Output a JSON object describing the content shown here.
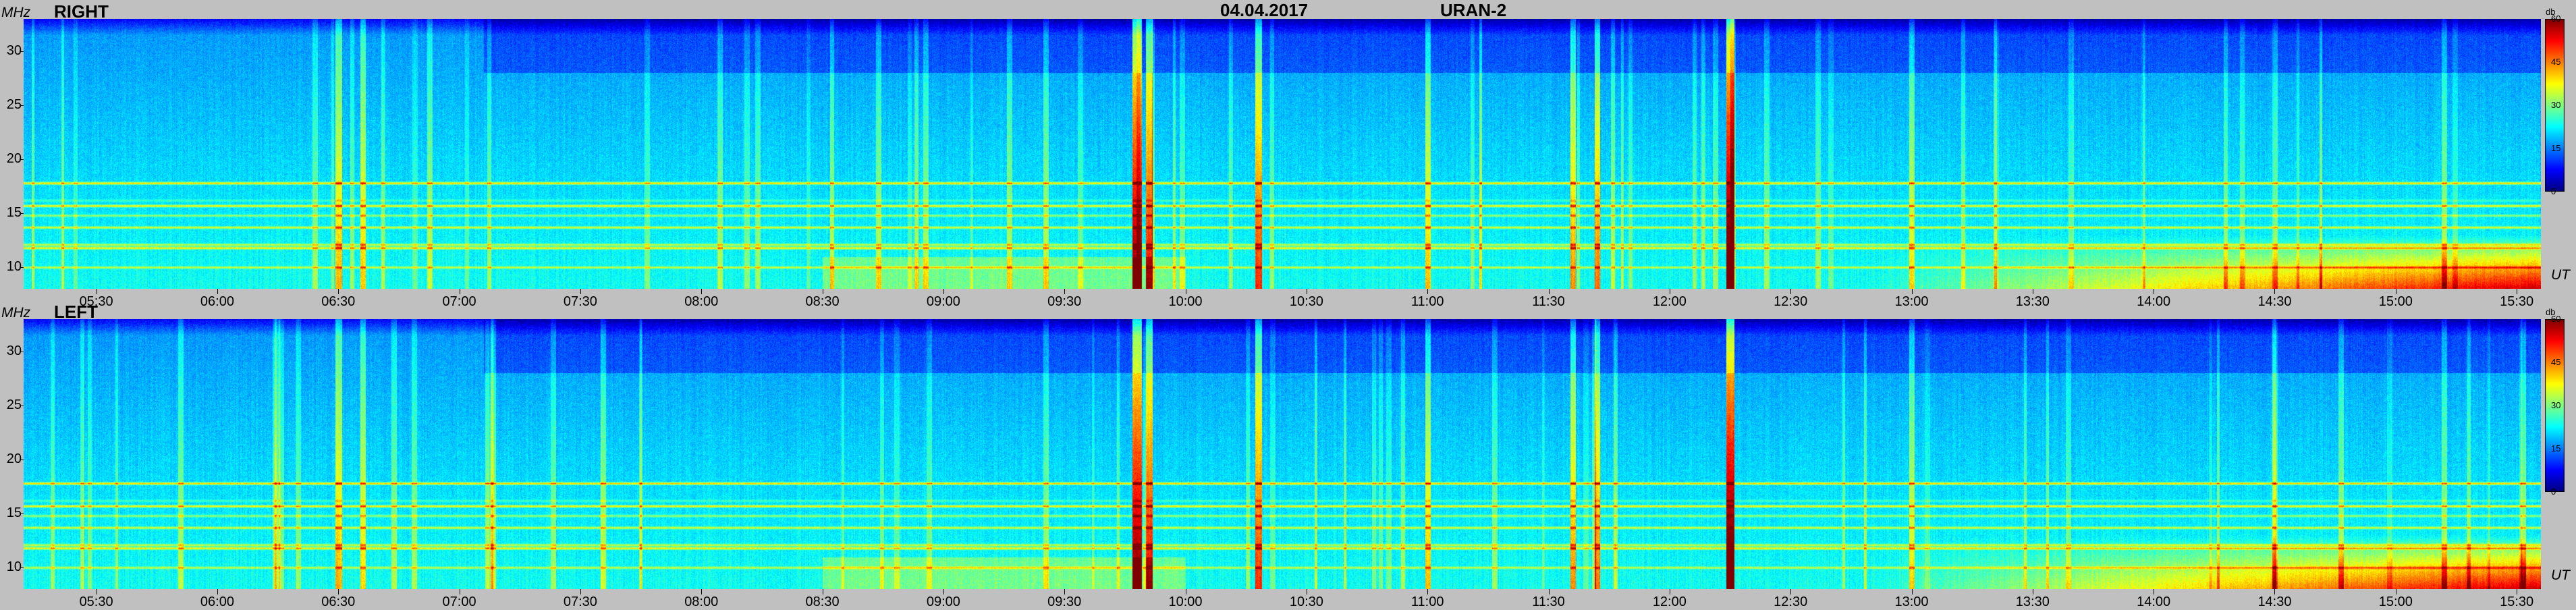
{
  "header": {
    "date": "04.04.2017",
    "instrument": "URAN-2"
  },
  "axes": {
    "y_unit": "MHz",
    "x_unit": "UT",
    "colorbar_unit": "db"
  },
  "chart_data": [
    {
      "type": "heatmap",
      "panel_label": "RIGHT",
      "x_tick_labels": [
        "05:30",
        "06:00",
        "06:30",
        "07:00",
        "07:30",
        "08:00",
        "08:30",
        "09:00",
        "09:30",
        "10:00",
        "10:30",
        "11:00",
        "11:30",
        "12:00",
        "12:30",
        "13:00",
        "13:30",
        "14:00",
        "14:30",
        "15:00",
        "15:30"
      ],
      "y_tick_labels": [
        "10",
        "15",
        "20",
        "25",
        "30"
      ],
      "xlim_hours": [
        5.2,
        15.6
      ],
      "ylim_mhz": [
        8,
        33
      ],
      "colorbar_ticks": [
        "60",
        "45",
        "30",
        "15",
        "0"
      ],
      "colorbar_range_db": [
        0,
        60
      ],
      "colormap": "jet"
    },
    {
      "type": "heatmap",
      "panel_label": "LEFT",
      "x_tick_labels": [
        "05:30",
        "06:00",
        "06:30",
        "07:00",
        "07:30",
        "08:00",
        "08:30",
        "09:00",
        "09:30",
        "10:00",
        "10:30",
        "11:00",
        "11:30",
        "12:00",
        "12:30",
        "13:00",
        "13:30",
        "14:00",
        "14:30",
        "15:00",
        "15:30"
      ],
      "y_tick_labels": [
        "10",
        "15",
        "20",
        "25",
        "30"
      ],
      "xlim_hours": [
        5.2,
        15.6
      ],
      "ylim_mhz": [
        8,
        33
      ],
      "colorbar_ticks": [
        "60",
        "45",
        "30",
        "15",
        "0"
      ],
      "colorbar_range_db": [
        0,
        60
      ],
      "colormap": "jet"
    }
  ]
}
